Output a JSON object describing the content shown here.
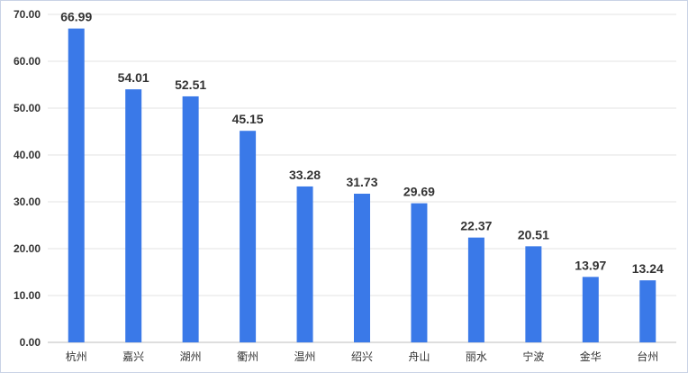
{
  "chart_data": {
    "type": "bar",
    "title": "",
    "xlabel": "",
    "ylabel": "",
    "categories": [
      "杭州",
      "嘉兴",
      "湖州",
      "衢州",
      "温州",
      "绍兴",
      "舟山",
      "丽水",
      "宁波",
      "金华",
      "台州"
    ],
    "values": [
      66.99,
      54.01,
      52.51,
      45.15,
      33.28,
      31.73,
      29.69,
      22.37,
      20.51,
      13.97,
      13.24
    ],
    "data_labels": [
      "66.99",
      "54.01",
      "52.51",
      "45.15",
      "33.28",
      "31.73",
      "29.69",
      "22.37",
      "20.51",
      "13.97",
      "13.24"
    ],
    "ylim": [
      0,
      70
    ],
    "yticks": [
      0,
      10,
      20,
      30,
      40,
      50,
      60,
      70
    ],
    "ytick_labels": [
      "0.00",
      "10.00",
      "20.00",
      "30.00",
      "40.00",
      "50.00",
      "60.00",
      "70.00"
    ],
    "grid": true,
    "legend": "none",
    "bar_color": "#3a79e8"
  }
}
